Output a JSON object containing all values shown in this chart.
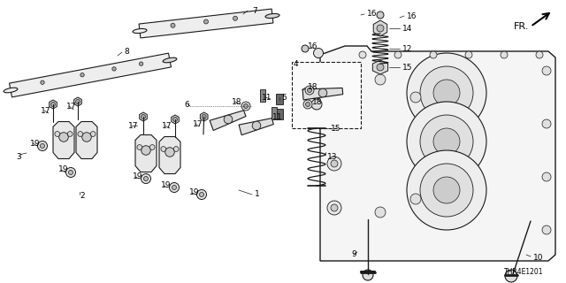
{
  "background_color": "#ffffff",
  "diagram_code": "THR4E1201",
  "line_color": "#1a1a1a",
  "fig_width": 6.4,
  "fig_height": 3.2,
  "font_size": 6.5
}
